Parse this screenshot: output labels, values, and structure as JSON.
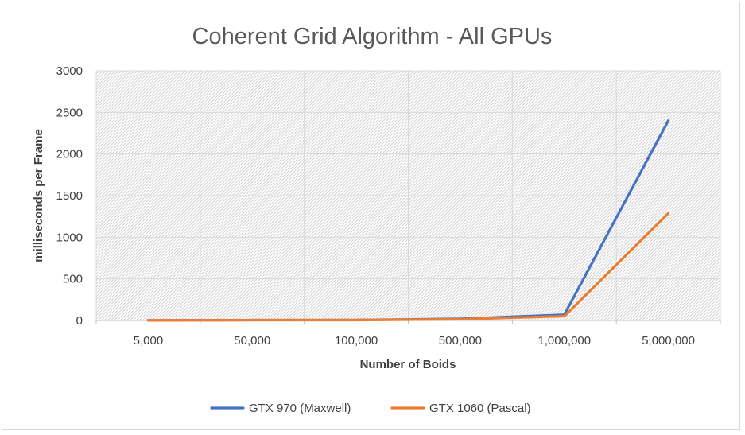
{
  "chart_data": {
    "type": "line",
    "title": "Coherent Grid Algorithm - All GPUs",
    "xlabel": "Number of Boids",
    "ylabel": "milliseconds per Frame",
    "categories": [
      "5,000",
      "50,000",
      "100,000",
      "500,000",
      "1,000,000",
      "5,000,000"
    ],
    "ylim": [
      0,
      3000
    ],
    "yticks": [
      "0",
      "500",
      "1000",
      "1500",
      "2000",
      "2500",
      "3000"
    ],
    "grid": true,
    "legend_position": "bottom",
    "series": [
      {
        "name": "GTX 970 (Maxwell)",
        "color": "#4472c4",
        "values": [
          1,
          5,
          6,
          20,
          70,
          2400
        ]
      },
      {
        "name": "GTX 1060 (Pascal)",
        "color": "#ed7d31",
        "values": [
          1,
          4,
          5,
          15,
          52,
          1285
        ]
      }
    ]
  }
}
